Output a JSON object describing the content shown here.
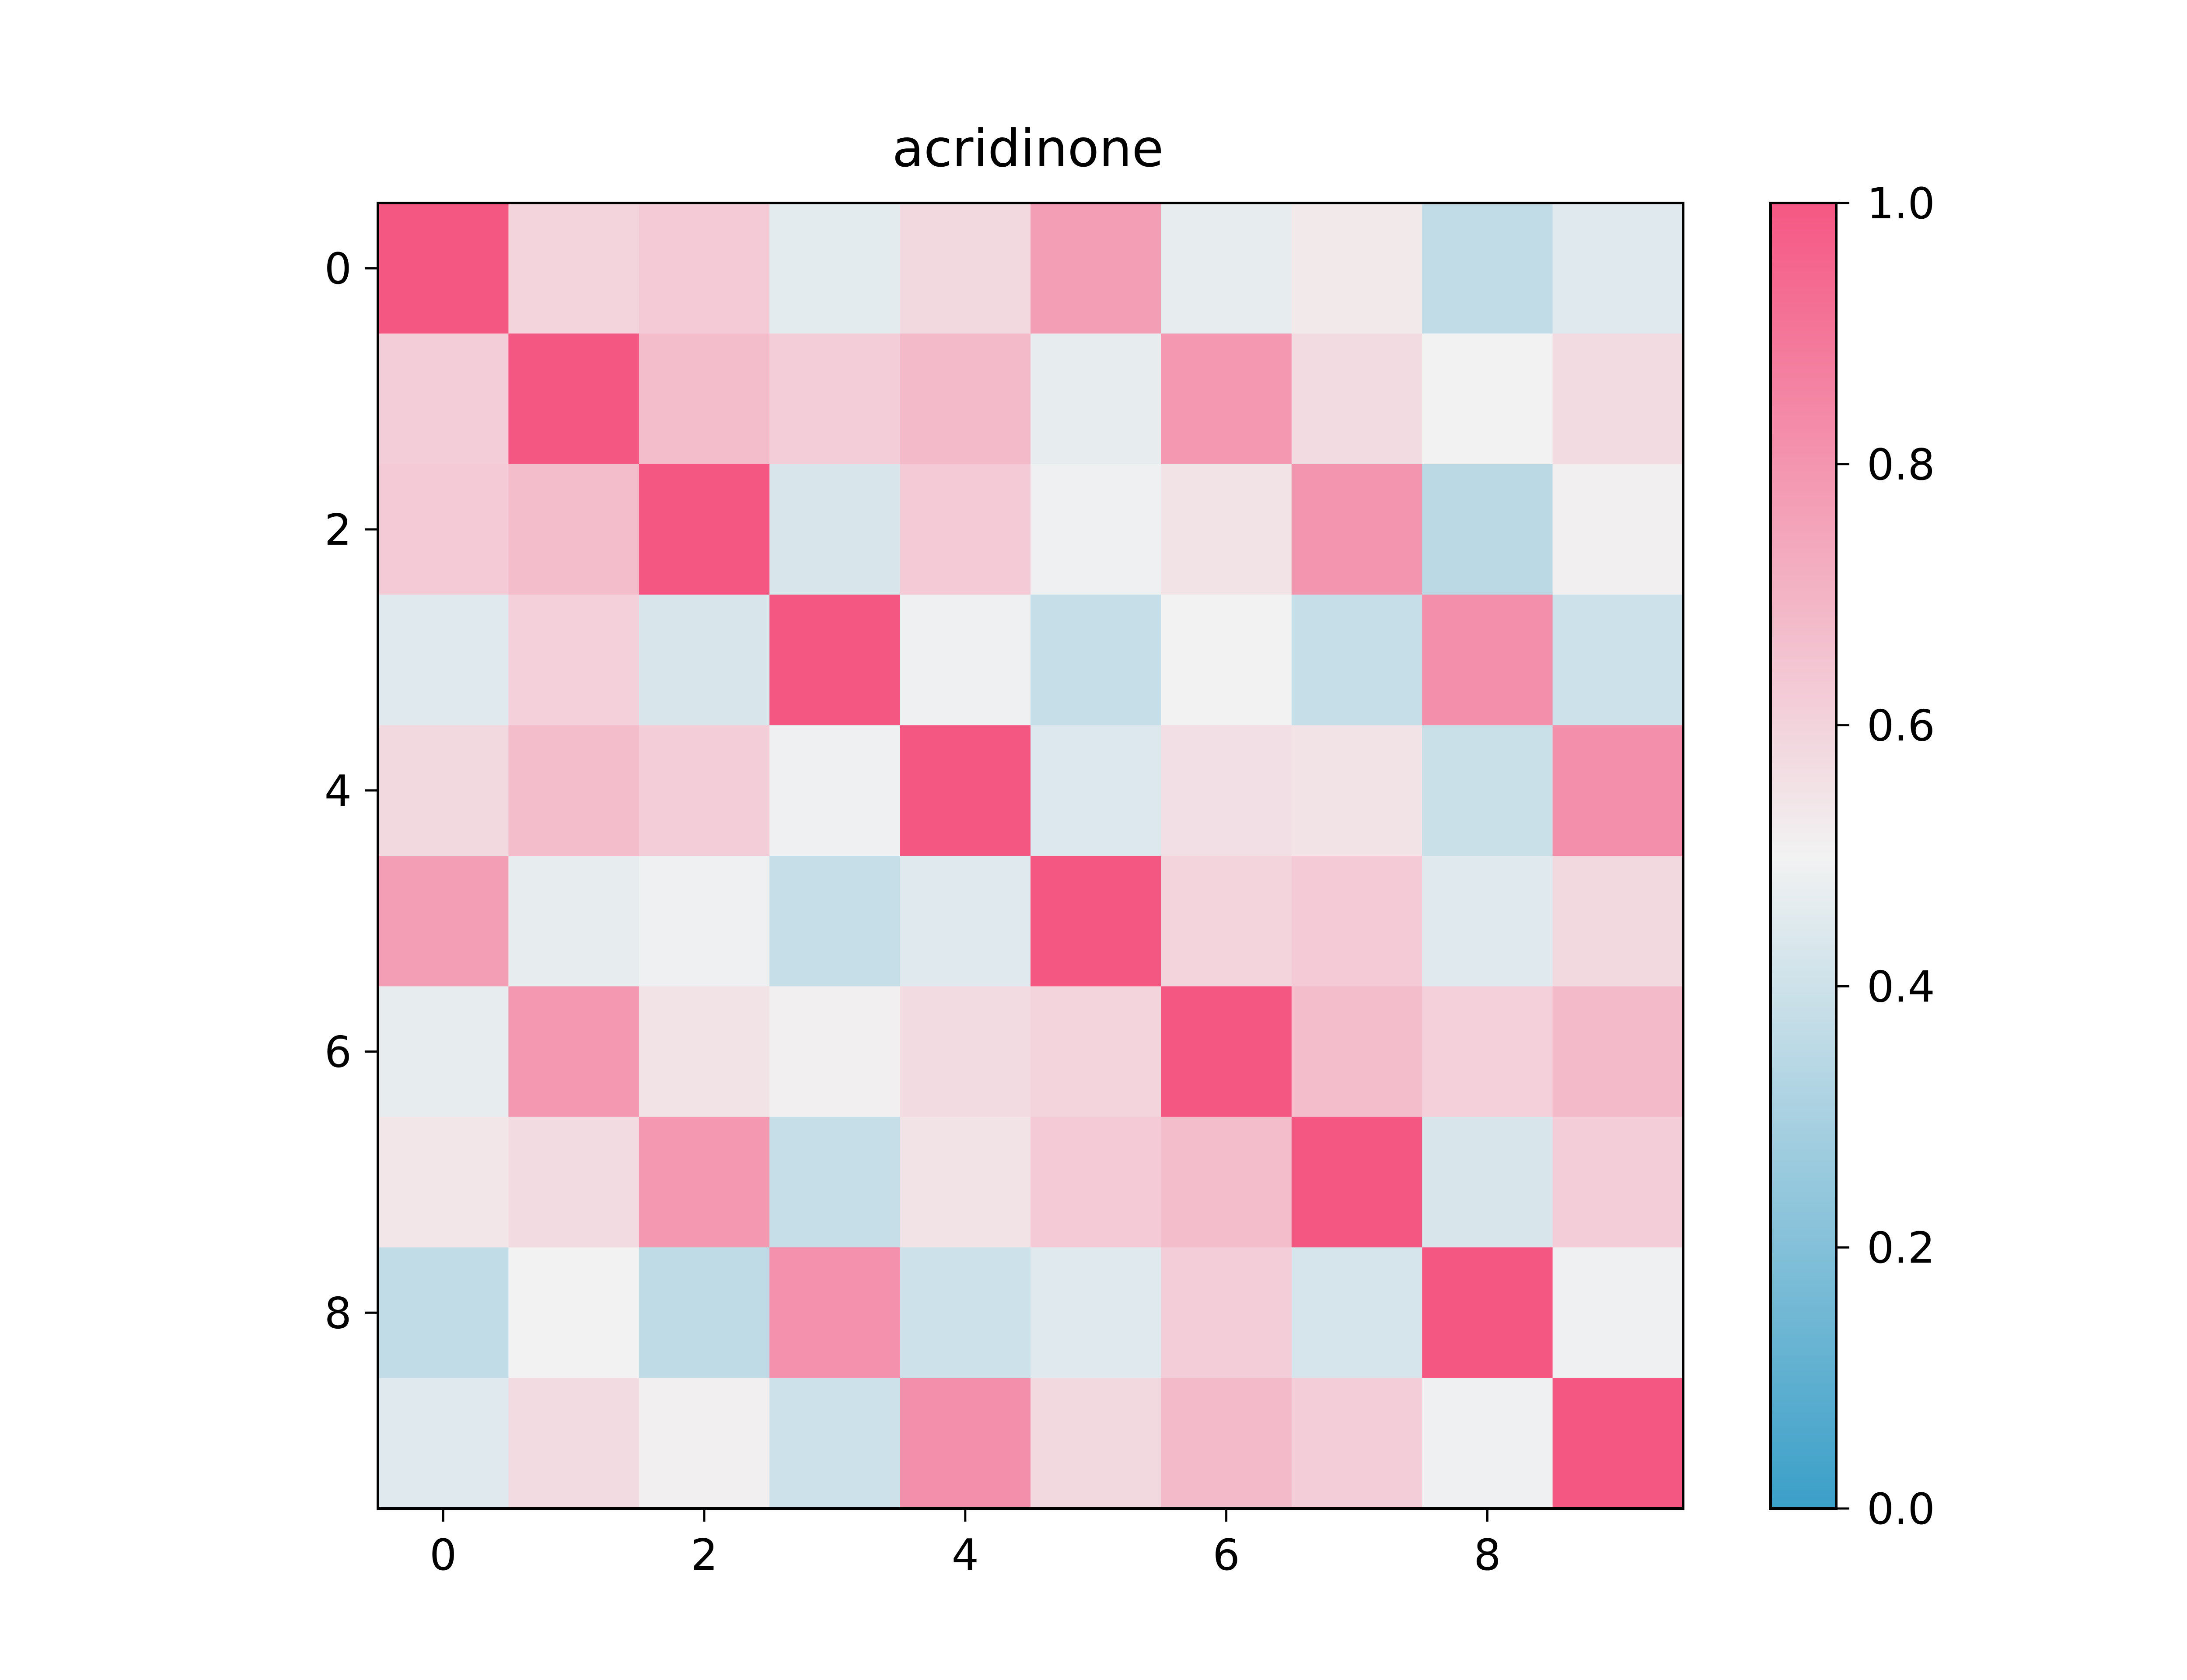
{
  "chart_data": {
    "type": "heatmap",
    "title": "acridinone",
    "xlabel": "",
    "ylabel": "",
    "x_ticks": [
      "0",
      "2",
      "4",
      "6",
      "8"
    ],
    "y_ticks": [
      "0",
      "2",
      "4",
      "6",
      "8"
    ],
    "colorbar": {
      "range": [
        0.0,
        1.0
      ],
      "ticks": [
        "0.0",
        "0.2",
        "0.4",
        "0.6",
        "0.8",
        "1.0"
      ],
      "low_color": "#3a9fc8",
      "mid_color": "#f2f2f2",
      "high_color": "#f55783"
    },
    "values": [
      [
        1.0,
        0.6,
        0.63,
        0.46,
        0.58,
        0.77,
        0.47,
        0.53,
        0.37,
        0.45
      ],
      [
        0.62,
        1.0,
        0.67,
        0.62,
        0.68,
        0.47,
        0.79,
        0.57,
        0.5,
        0.57
      ],
      [
        0.63,
        0.67,
        1.0,
        0.43,
        0.63,
        0.49,
        0.55,
        0.8,
        0.35,
        0.51
      ],
      [
        0.45,
        0.61,
        0.43,
        1.0,
        0.49,
        0.38,
        0.5,
        0.38,
        0.82,
        0.4
      ],
      [
        0.58,
        0.67,
        0.62,
        0.49,
        1.0,
        0.44,
        0.56,
        0.55,
        0.39,
        0.82
      ],
      [
        0.77,
        0.47,
        0.49,
        0.38,
        0.45,
        1.0,
        0.6,
        0.63,
        0.45,
        0.58
      ],
      [
        0.47,
        0.79,
        0.55,
        0.51,
        0.57,
        0.6,
        1.0,
        0.67,
        0.61,
        0.68
      ],
      [
        0.54,
        0.57,
        0.79,
        0.38,
        0.55,
        0.63,
        0.67,
        1.0,
        0.43,
        0.62
      ],
      [
        0.37,
        0.5,
        0.36,
        0.81,
        0.4,
        0.45,
        0.62,
        0.42,
        1.0,
        0.49
      ],
      [
        0.45,
        0.57,
        0.51,
        0.4,
        0.82,
        0.58,
        0.68,
        0.62,
        0.49,
        1.0
      ]
    ]
  }
}
